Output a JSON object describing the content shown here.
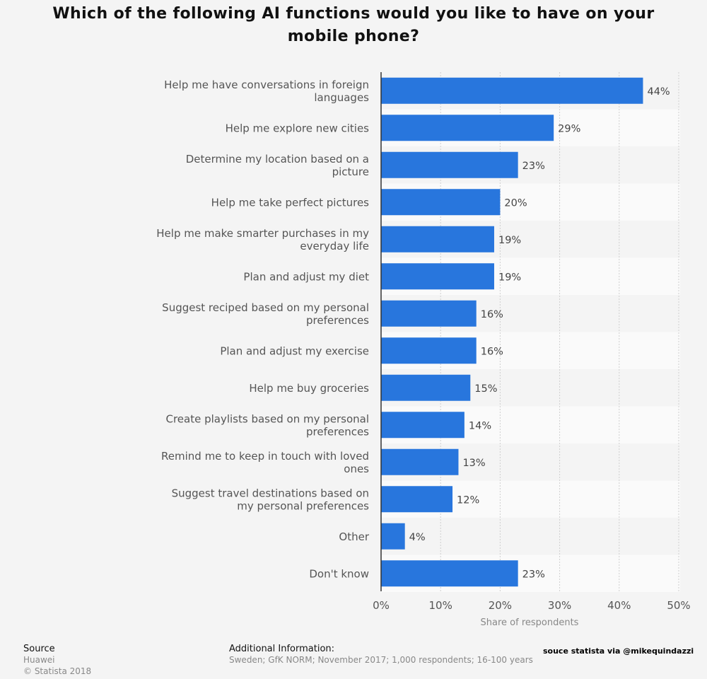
{
  "page": {
    "background": "#f4f4f4"
  },
  "chart_data": {
    "type": "bar",
    "orientation": "horizontal",
    "title": "Which of the following AI functions would you like to have on your mobile phone?",
    "categories": [
      "Help me have conversations in foreign languages",
      "Help me explore new cities",
      "Determine my location based on a picture",
      "Help me take perfect pictures",
      "Help me make smarter purchases in my everyday life",
      "Plan and adjust my diet",
      "Suggest reciped based on my personal preferences",
      "Plan and adjust my exercise",
      "Help me buy groceries",
      "Create playlists based on my personal preferences",
      "Remind me to keep in touch with loved ones",
      "Suggest travel destinations based on my personal preferences",
      "Other",
      "Don't know"
    ],
    "values": [
      44,
      29,
      23,
      20,
      19,
      19,
      16,
      16,
      15,
      14,
      13,
      12,
      4,
      23
    ],
    "value_labels": [
      "44%",
      "29%",
      "23%",
      "20%",
      "19%",
      "19%",
      "16%",
      "16%",
      "15%",
      "14%",
      "13%",
      "12%",
      "4%",
      "23%"
    ],
    "xlabel": "Share of respondents",
    "ylabel": "",
    "xlim": [
      0,
      50
    ],
    "x_ticks": [
      0,
      10,
      20,
      30,
      40,
      50
    ],
    "x_tick_labels": [
      "0%",
      "10%",
      "20%",
      "30%",
      "40%",
      "50%"
    ],
    "grid": true,
    "bar_color": "#2876dd"
  },
  "footer": {
    "source_heading": "Source",
    "source_name": "Huawei",
    "copyright": "© Statista 2018",
    "additional_heading": "Additional Information:",
    "additional_text": "Sweden; GfK NORM; November 2017; 1,000 respondents; 16-100 years",
    "watermark": "souce statista via @mikequindazzi"
  }
}
